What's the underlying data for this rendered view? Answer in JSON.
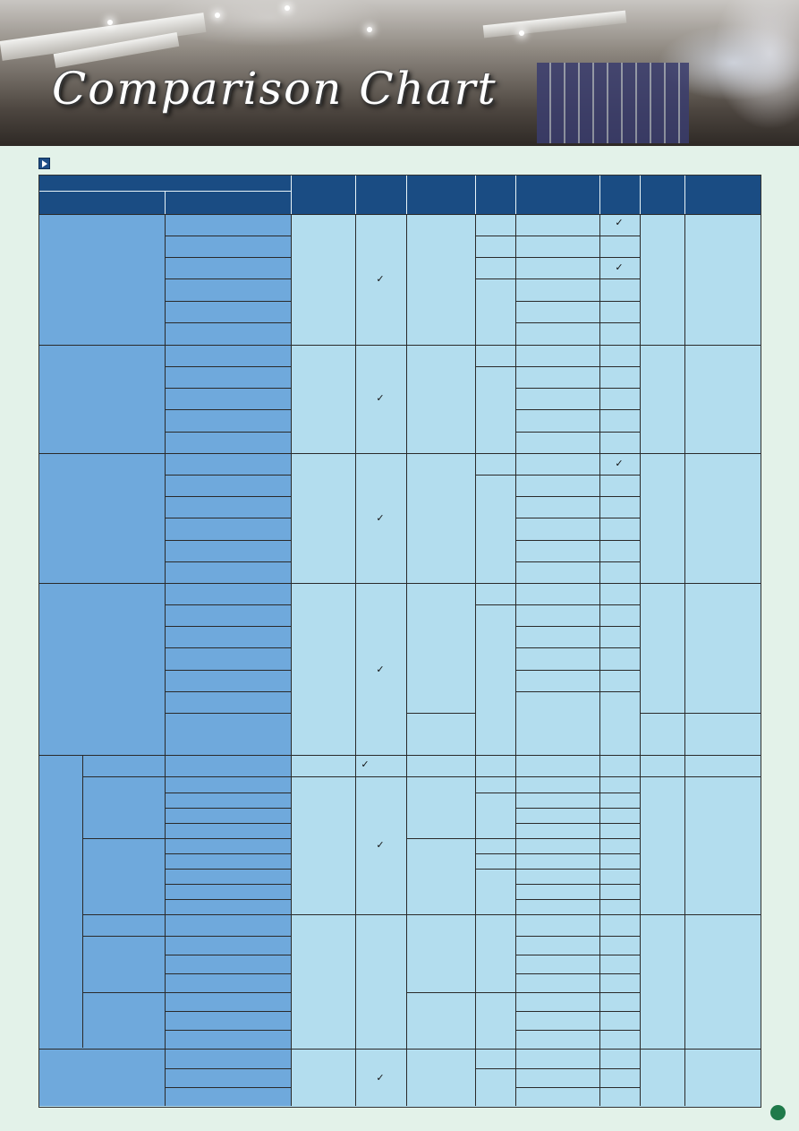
{
  "banner": {
    "title": "Comparison Chart"
  },
  "checks": {
    "mark": "✓"
  },
  "colors": {
    "header": "#1a4c83",
    "label": "#6fa9dc",
    "body": "#b3ddee",
    "page_bg": "#e3f2e9",
    "page_dot": "#1f7a4a"
  },
  "icons": {
    "section": "play-arrow-icon",
    "page": "page-number-dot-icon"
  }
}
